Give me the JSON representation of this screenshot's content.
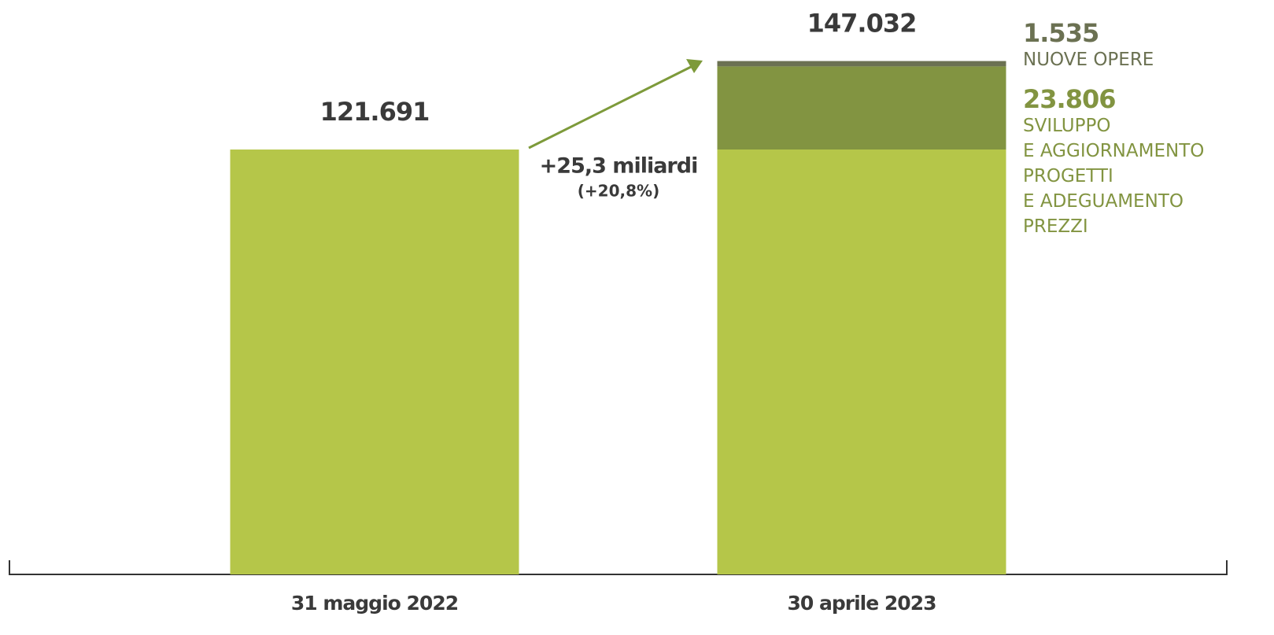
{
  "chart_data": {
    "type": "stacked_bar",
    "categories": [
      "31 maggio 2022",
      "30 aprile 2023"
    ],
    "series": [
      {
        "color": "#b5c649",
        "values": [
          121691,
          121691
        ]
      },
      {
        "name": "SVILUPPO\nE AGGIORNAMENTO\nPROGETTI\nE ADEGUAMENTO\nPREZZI",
        "color": "#829441",
        "values": [
          null,
          23806
        ],
        "value_labels": [
          null,
          "23.806"
        ]
      },
      {
        "name": "NUOVE OPERE",
        "color": "#6b7152",
        "values": [
          null,
          1535
        ],
        "value_labels": [
          null,
          "1.535"
        ]
      }
    ],
    "totals": {
      "values": [
        121691,
        147032
      ],
      "value_labels": [
        "121.691",
        "147.032"
      ]
    },
    "annotations": [
      "+25,3 miliardi",
      "(+20,8%)"
    ],
    "ylim": [
      0,
      150000
    ]
  }
}
